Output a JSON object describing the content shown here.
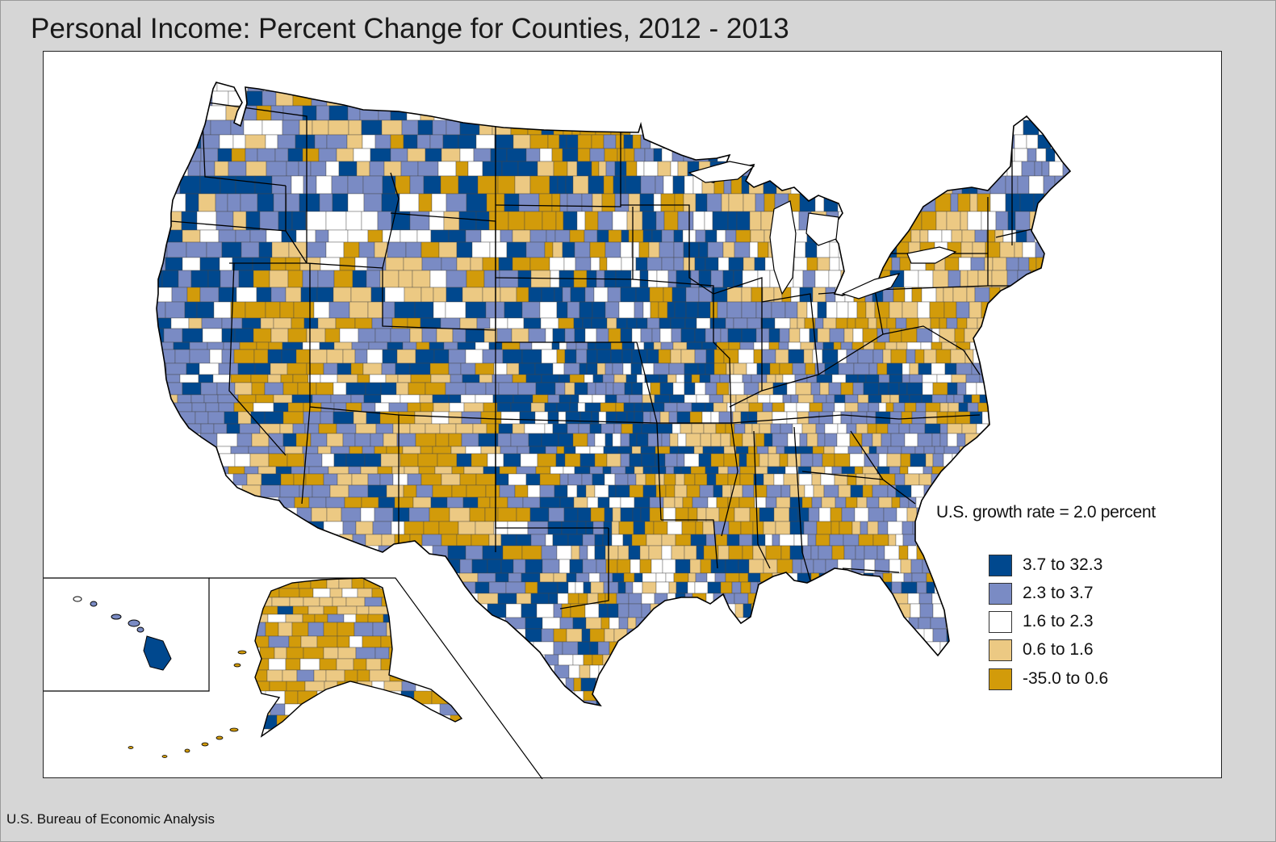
{
  "title": "Personal Income: Percent Change for Counties, 2012 - 2013",
  "source": "U.S. Bureau of Economic Analysis",
  "legend": {
    "title": "U.S. growth rate = 2.0 percent",
    "items": [
      {
        "label": "3.7 to 32.3",
        "color": "#00488e"
      },
      {
        "label": "2.3 to 3.7",
        "color": "#7a8bc4"
      },
      {
        "label": "1.6 to 2.3",
        "color": "#ffffff"
      },
      {
        "label": "0.6 to 1.6",
        "color": "#ecc983"
      },
      {
        "label": "-35.0 to 0.6",
        "color": "#d29b0a"
      }
    ]
  },
  "map": {
    "regions": [
      "contiguous-us",
      "alaska-inset",
      "hawaii-inset"
    ],
    "colors": {
      "border": "#000000",
      "county_border": "#444444",
      "panel_background": "#ffffff",
      "page_background": "#d6d6d6"
    }
  }
}
